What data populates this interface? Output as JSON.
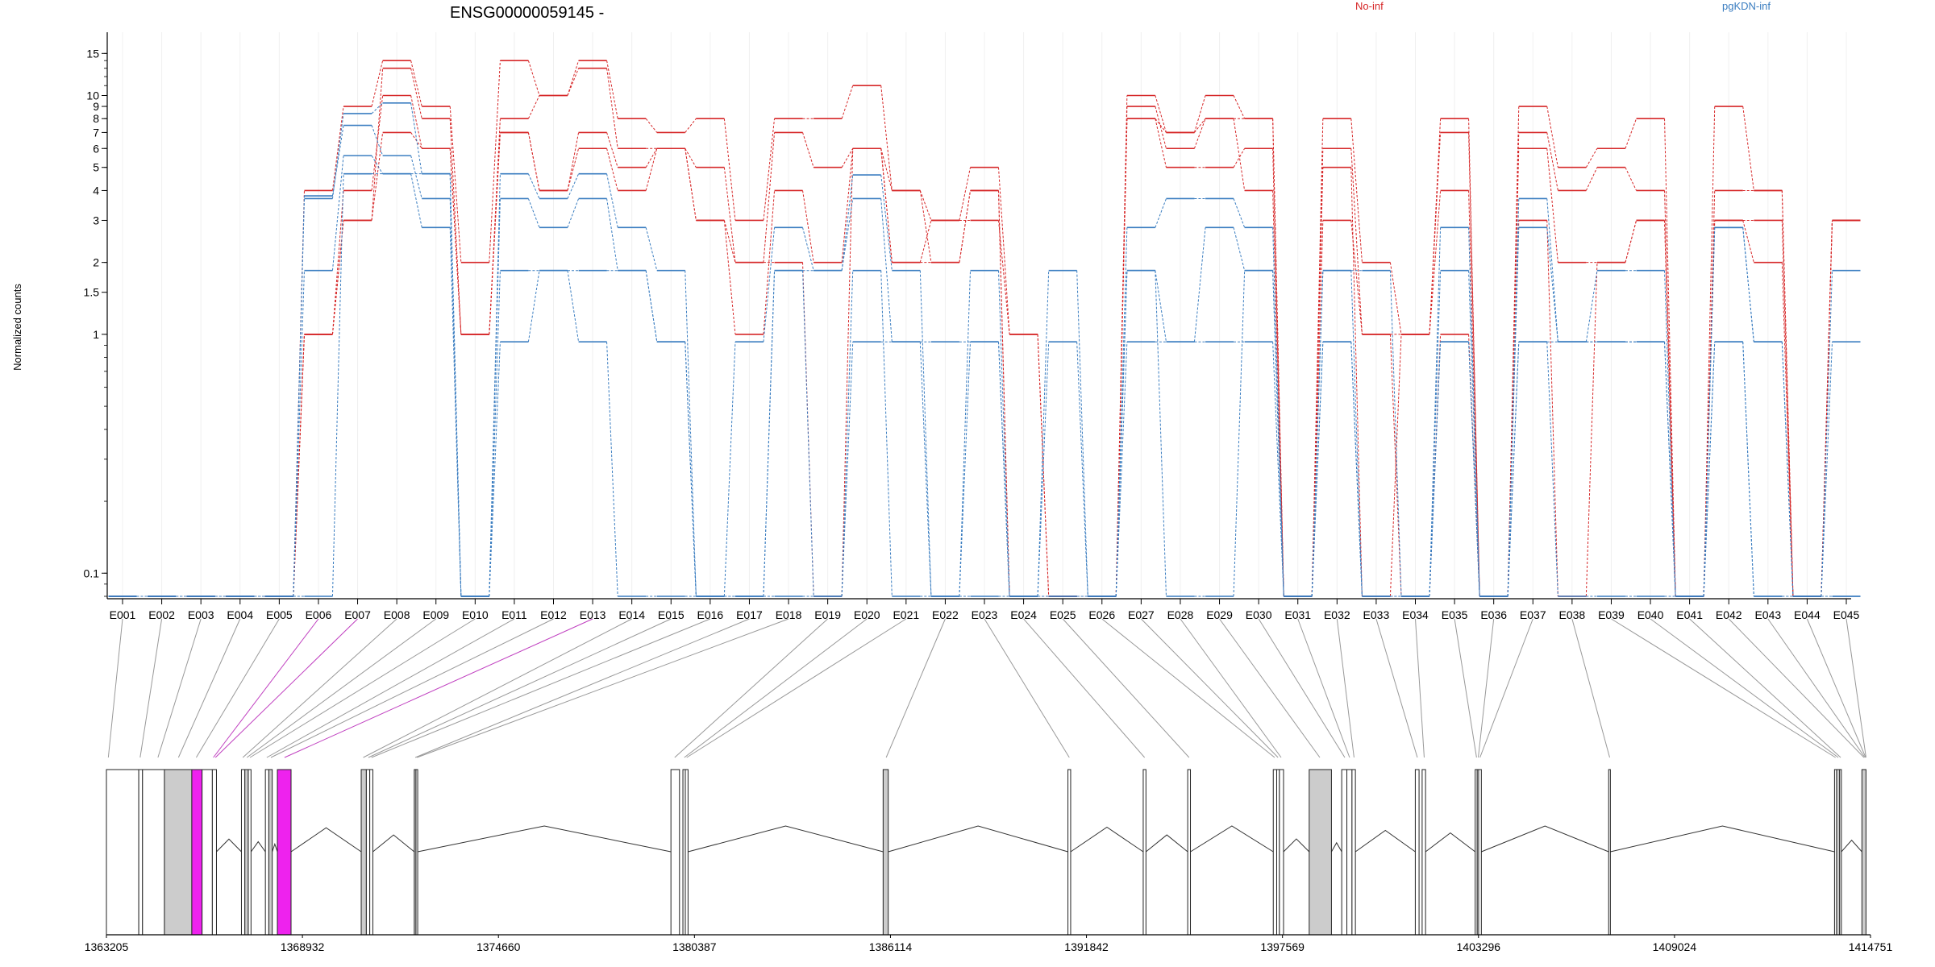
{
  "chart_data": {
    "type": "line",
    "title": "ENSG00000059145 -",
    "ylabel": "Normalized counts",
    "yscale": "log",
    "ylim": [
      0.08,
      16
    ],
    "ytick_labels": [
      "0.1",
      "1",
      "1.5",
      "2",
      "3",
      "4",
      "5",
      "6",
      "7",
      "8",
      "9",
      "10",
      "15"
    ],
    "yticks": [
      0.1,
      1,
      1.5,
      2,
      3,
      4,
      5,
      6,
      7,
      8,
      9,
      10,
      15
    ],
    "zero_floor": 0.08,
    "categories": [
      "E001",
      "E002",
      "E003",
      "E004",
      "E005",
      "E006",
      "E007",
      "E008",
      "E009",
      "E010",
      "E011",
      "E012",
      "E013",
      "E014",
      "E015",
      "E016",
      "E017",
      "E018",
      "E019",
      "E020",
      "E021",
      "E022",
      "E023",
      "E024",
      "E025",
      "E026",
      "E027",
      "E028",
      "E029",
      "E030",
      "E031",
      "E032",
      "E033",
      "E034",
      "E035",
      "E036",
      "E037",
      "E038",
      "E039",
      "E040",
      "E041",
      "E042",
      "E043",
      "E044",
      "E045"
    ],
    "legend": [
      {
        "name": "No-inf",
        "color": "#d62728"
      },
      {
        "name": "pgKDN-inf",
        "color": "#3a7dc0"
      }
    ],
    "series": [
      {
        "group": "No-inf",
        "values": [
          0,
          0,
          0,
          0,
          0,
          4,
          9,
          14,
          9,
          2,
          14,
          10,
          14,
          8,
          7,
          8,
          3,
          8,
          8,
          11,
          4,
          3,
          5,
          1,
          0,
          0,
          10,
          7,
          10,
          8,
          0,
          8,
          2,
          1,
          8,
          0,
          9,
          5,
          6,
          8,
          0,
          9,
          4,
          0,
          3
        ]
      },
      {
        "group": "No-inf",
        "values": [
          0,
          0,
          0,
          0,
          0,
          1,
          3,
          13,
          8,
          1,
          8,
          10,
          13,
          6,
          6,
          5,
          2,
          7,
          5,
          6,
          4,
          2,
          4,
          0,
          0,
          0,
          9,
          6,
          8,
          8,
          0,
          6,
          1,
          1,
          7,
          0,
          7,
          4,
          5,
          4,
          0,
          4,
          4,
          0,
          3
        ]
      },
      {
        "group": "No-inf",
        "values": [
          0,
          0,
          0,
          0,
          0,
          1,
          4,
          10,
          6,
          1,
          7,
          4,
          7,
          5,
          6,
          3,
          1,
          4,
          2,
          6,
          2,
          3,
          3,
          1,
          0,
          0,
          8,
          5,
          5,
          6,
          0,
          5,
          0,
          1,
          4,
          0,
          6,
          2,
          2,
          3,
          0,
          3,
          3,
          0,
          3
        ]
      },
      {
        "group": "No-inf",
        "values": [
          0,
          0,
          0,
          0,
          0,
          1,
          3,
          7,
          6,
          1,
          7,
          4,
          6,
          4,
          6,
          3,
          2,
          2,
          0,
          6,
          2,
          2,
          4,
          0,
          0,
          0,
          8,
          7,
          8,
          4,
          0,
          3,
          1,
          0,
          1,
          0,
          3,
          0,
          2,
          3,
          0,
          3,
          2,
          0,
          3
        ]
      },
      {
        "group": "pgKDN-inf",
        "values": [
          0,
          0,
          0,
          0,
          0,
          3.7,
          8.4,
          9.3,
          4.7,
          0,
          4.7,
          3.7,
          4.7,
          2.8,
          1.85,
          0,
          0.93,
          2.8,
          1.85,
          4.65,
          1.85,
          0,
          1.85,
          0,
          1.85,
          0,
          2.8,
          3.7,
          3.7,
          2.8,
          0,
          1.85,
          0,
          0,
          1.85,
          0,
          3.7,
          0.93,
          1.85,
          1.85,
          0,
          2.8,
          0.93,
          0,
          1.85
        ]
      },
      {
        "group": "pgKDN-inf",
        "values": [
          0,
          0,
          0,
          0,
          0,
          3.8,
          7.5,
          5.6,
          3.7,
          0,
          3.7,
          2.8,
          3.7,
          1.85,
          0.93,
          0,
          0,
          1.85,
          1.85,
          3.7,
          0.93,
          0.93,
          0.93,
          0,
          0.93,
          0,
          1.85,
          0.93,
          2.8,
          1.85,
          0,
          1.85,
          1.85,
          0,
          2.8,
          0,
          2.8,
          0.93,
          0.93,
          0.93,
          0,
          2.8,
          0.93,
          0,
          0.93
        ]
      },
      {
        "group": "pgKDN-inf",
        "values": [
          0,
          0,
          0,
          0,
          0,
          1.85,
          5.6,
          4.7,
          2.8,
          0,
          1.85,
          1.85,
          1.85,
          1.85,
          0.93,
          0,
          0,
          0,
          0,
          0.93,
          0.93,
          0,
          0.93,
          0,
          0,
          0,
          0.93,
          0.93,
          0.93,
          0.93,
          0,
          0.93,
          0,
          0,
          0.93,
          0,
          0.93,
          0.93,
          0.93,
          0.93,
          0,
          0.93,
          0,
          0,
          0
        ]
      },
      {
        "group": "pgKDN-inf",
        "values": [
          0,
          0,
          0,
          0,
          0,
          0,
          4.7,
          4.7,
          4.7,
          0,
          0.93,
          1.85,
          0.93,
          0,
          0,
          0,
          0,
          1.85,
          0,
          1.85,
          0,
          0,
          0,
          0,
          0,
          0,
          1.85,
          0,
          0,
          1.85,
          0,
          0.93,
          0,
          0,
          0.93,
          0,
          0.93,
          0,
          0,
          0,
          0,
          0.93,
          0,
          0,
          0
        ]
      }
    ],
    "genome_axis": {
      "tick_labels": [
        "1363205",
        "1368932",
        "1374660",
        "1380387",
        "1386114",
        "1391842",
        "1397569",
        "1403296",
        "1409024",
        "1414751"
      ],
      "range": [
        1363205,
        1414751
      ]
    },
    "gene_model": {
      "exons": [
        [
          1363205,
          1364150,
          "white"
        ],
        [
          1364150,
          1364260,
          "white"
        ],
        [
          1364260,
          1364900,
          "white"
        ],
        [
          1364900,
          1365700,
          "gray"
        ],
        [
          1365700,
          1366000,
          "magenta"
        ],
        [
          1366000,
          1366300,
          "white"
        ],
        [
          1366300,
          1366420,
          "white"
        ],
        [
          1367150,
          1367250,
          "white"
        ],
        [
          1367250,
          1367350,
          "gray"
        ],
        [
          1367350,
          1367430,
          "white"
        ],
        [
          1367850,
          1367950,
          "white"
        ],
        [
          1367950,
          1368050,
          "gray"
        ],
        [
          1368200,
          1368600,
          "magenta"
        ],
        [
          1370650,
          1370800,
          "gray"
        ],
        [
          1370800,
          1370900,
          "white"
        ],
        [
          1370900,
          1370990,
          "white"
        ],
        [
          1372200,
          1372250,
          "gray"
        ],
        [
          1372250,
          1372300,
          "white"
        ],
        [
          1379700,
          1379950,
          "white"
        ],
        [
          1380050,
          1380120,
          "white"
        ],
        [
          1380120,
          1380200,
          "white"
        ],
        [
          1385900,
          1386050,
          "gray"
        ],
        [
          1391300,
          1391380,
          "white"
        ],
        [
          1393500,
          1393580,
          "white"
        ],
        [
          1394800,
          1394880,
          "white"
        ],
        [
          1397300,
          1397400,
          "white"
        ],
        [
          1397400,
          1397480,
          "white"
        ],
        [
          1397480,
          1397600,
          "white"
        ],
        [
          1398350,
          1399000,
          "gray"
        ],
        [
          1399300,
          1399450,
          "white"
        ],
        [
          1399450,
          1399600,
          "white"
        ],
        [
          1399600,
          1399700,
          "white"
        ],
        [
          1401450,
          1401560,
          "white"
        ],
        [
          1401650,
          1401750,
          "white"
        ],
        [
          1403200,
          1403260,
          "white"
        ],
        [
          1403260,
          1403300,
          "white"
        ],
        [
          1403300,
          1403380,
          "white"
        ],
        [
          1407100,
          1407150,
          "white"
        ],
        [
          1413700,
          1413760,
          "white"
        ],
        [
          1413760,
          1413850,
          "gray"
        ],
        [
          1413850,
          1413900,
          "white"
        ],
        [
          1414500,
          1414620,
          "gray"
        ]
      ],
      "exon_bins": [
        [
          1363250,
          1363270
        ],
        [
          1364180,
          1364200
        ],
        [
          1364700,
          1364720
        ],
        [
          1365300,
          1365320
        ],
        [
          1365820,
          1365840
        ],
        [
          1366320,
          1366340
        ],
        [
          1366380,
          1366400
        ],
        [
          1367180,
          1367200
        ],
        [
          1367300,
          1367320
        ],
        [
          1367390,
          1367410
        ],
        [
          1367880,
          1367900
        ],
        [
          1368000,
          1368020
        ],
        [
          1368400,
          1368420
        ],
        [
          1370700,
          1370720
        ],
        [
          1370850,
          1370870
        ],
        [
          1370940,
          1370960
        ],
        [
          1372220,
          1372240
        ],
        [
          1372270,
          1372290
        ],
        [
          1379800,
          1379820
        ],
        [
          1380080,
          1380100
        ],
        [
          1380150,
          1380170
        ],
        [
          1385980,
          1386000
        ],
        [
          1391330,
          1391350
        ],
        [
          1393530,
          1393550
        ],
        [
          1394830,
          1394850
        ],
        [
          1397330,
          1397350
        ],
        [
          1397430,
          1397450
        ],
        [
          1397520,
          1397540
        ],
        [
          1398650,
          1398670
        ],
        [
          1399380,
          1399400
        ],
        [
          1399520,
          1399540
        ],
        [
          1399650,
          1399670
        ],
        [
          1401500,
          1401520
        ],
        [
          1401700,
          1401720
        ],
        [
          1403230,
          1403250
        ],
        [
          1403280,
          1403300
        ],
        [
          1403330,
          1403350
        ],
        [
          1407120,
          1407140
        ],
        [
          1413720,
          1413740
        ],
        [
          1413800,
          1413820
        ],
        [
          1413870,
          1413890
        ],
        [
          1414550,
          1414570
        ],
        [
          1414580,
          1414600
        ],
        [
          1414600,
          1414620
        ],
        [
          1414610,
          1414630
        ]
      ],
      "highlight_bins": [
        "E006",
        "E007",
        "E013"
      ]
    }
  }
}
